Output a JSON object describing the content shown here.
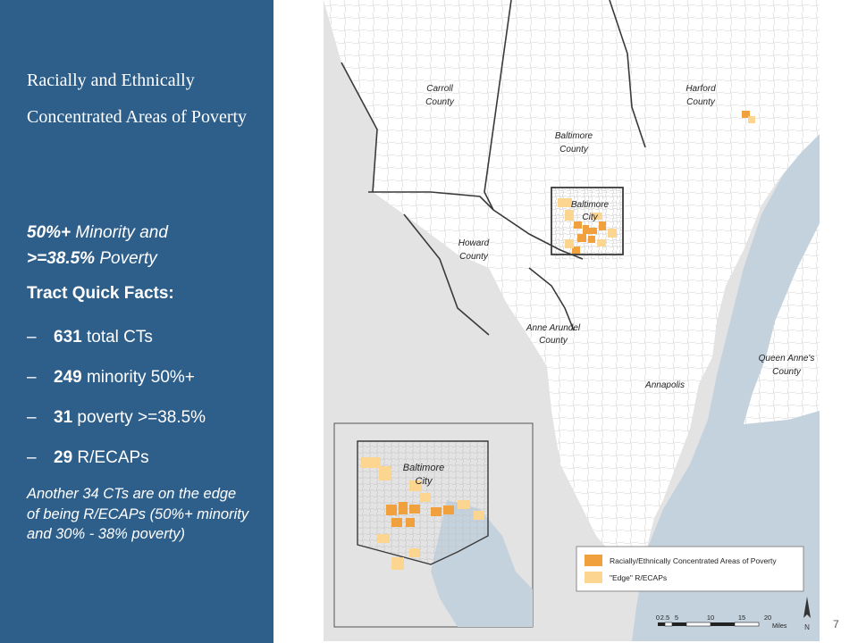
{
  "sidebar": {
    "title": "Racially and Ethnically Concentrated Areas of Poverty",
    "criteria": {
      "part1_bold": "50%+",
      "part1_text": " Minority and",
      "part2_bold": ">=38.5%",
      "part2_text": " Poverty"
    },
    "facts_heading": "Tract Quick Facts:",
    "facts": [
      {
        "dash": "–",
        "value": "631",
        "label": " total CTs"
      },
      {
        "dash": "–",
        "value": "249",
        "label": " minority 50%+"
      },
      {
        "dash": "–",
        "value": "31",
        "label": " poverty >=38.5%"
      },
      {
        "dash": "–",
        "value": "29",
        "label": " R/ECAPs"
      }
    ],
    "note": "Another 34 CTs are on the edge of being R/ECAPs (50%+ minority and 30% - 38% poverty)"
  },
  "map": {
    "county_labels": {
      "carroll": [
        "Carroll",
        "County"
      ],
      "baltimore_county": [
        "Baltimore",
        "County"
      ],
      "harford": [
        "Harford",
        "County"
      ],
      "baltimore_city": [
        "Baltimore",
        "City"
      ],
      "howard": [
        "Howard",
        "County"
      ],
      "anne_arundel": [
        "Anne Arundel",
        "County"
      ],
      "queen_annes": [
        "Queen Anne's",
        "County"
      ],
      "annapolis": "Annapolis"
    },
    "inset_label": [
      "Baltimore",
      "City"
    ],
    "legend": {
      "recap_label": "Racially/Ethnically Concentrated Areas of Poverty",
      "recap_color": "#f0a03c",
      "edge_label": "\"Edge\" R/ECAPs",
      "edge_color": "#fcd590"
    },
    "scale": {
      "ticks": [
        "0",
        "2.5",
        "5",
        "10",
        "15",
        "20"
      ],
      "unit": "Miles"
    },
    "north_arrow_letter": "N",
    "colors": {
      "land": "#ffffff",
      "outside": "#e3e3e3",
      "water": "#c4d2de",
      "boundary": "#3a3a3a",
      "tract_line": "#bdbdbd"
    }
  },
  "page_number": "7"
}
